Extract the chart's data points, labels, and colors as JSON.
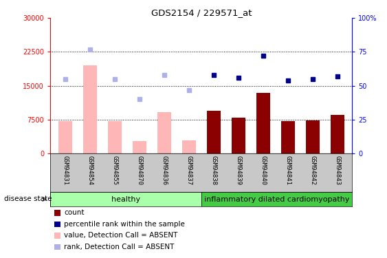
{
  "title": "GDS2154 / 229571_at",
  "samples": [
    "GSM94831",
    "GSM94854",
    "GSM94855",
    "GSM94870",
    "GSM94836",
    "GSM94837",
    "GSM94838",
    "GSM94839",
    "GSM94840",
    "GSM94841",
    "GSM94842",
    "GSM94843"
  ],
  "group_labels": [
    "healthy",
    "inflammatory dilated cardiomyopathy"
  ],
  "group_n": [
    6,
    6
  ],
  "bar_values": [
    7200,
    19500,
    7200,
    2700,
    9200,
    2900,
    9500,
    8000,
    13500,
    7200,
    7300,
    8500
  ],
  "bar_absent": [
    true,
    true,
    true,
    true,
    true,
    true,
    false,
    false,
    false,
    false,
    false,
    false
  ],
  "rank_values_pct": [
    55,
    77,
    55,
    40,
    58,
    47,
    58,
    56,
    72,
    54,
    55,
    57
  ],
  "rank_absent": [
    true,
    true,
    true,
    true,
    true,
    true,
    false,
    false,
    false,
    false,
    false,
    false
  ],
  "ylim_left": [
    0,
    30000
  ],
  "ylim_right": [
    0,
    100
  ],
  "yticks_left": [
    0,
    7500,
    15000,
    22500,
    30000
  ],
  "yticks_right": [
    0,
    25,
    50,
    75,
    100
  ],
  "ytick_labels_left": [
    "0",
    "7500",
    "15000",
    "22500",
    "30000"
  ],
  "ytick_labels_right": [
    "0",
    "25",
    "50",
    "75",
    "100%"
  ],
  "bar_color_absent": "#ffb6b6",
  "bar_color_present": "#8b0000",
  "rank_color_absent": "#b0b0e8",
  "rank_color_present": "#00008b",
  "group_healthy_color": "#aaffaa",
  "group_disease_color": "#44cc44",
  "tick_label_bg": "#c8c8c8",
  "disease_state_label": "disease state",
  "legend_items": [
    {
      "label": "count",
      "color": "#8b0000"
    },
    {
      "label": "percentile rank within the sample",
      "color": "#00008b"
    },
    {
      "label": "value, Detection Call = ABSENT",
      "color": "#ffb6b6"
    },
    {
      "label": "rank, Detection Call = ABSENT",
      "color": "#b0b0e8"
    }
  ]
}
